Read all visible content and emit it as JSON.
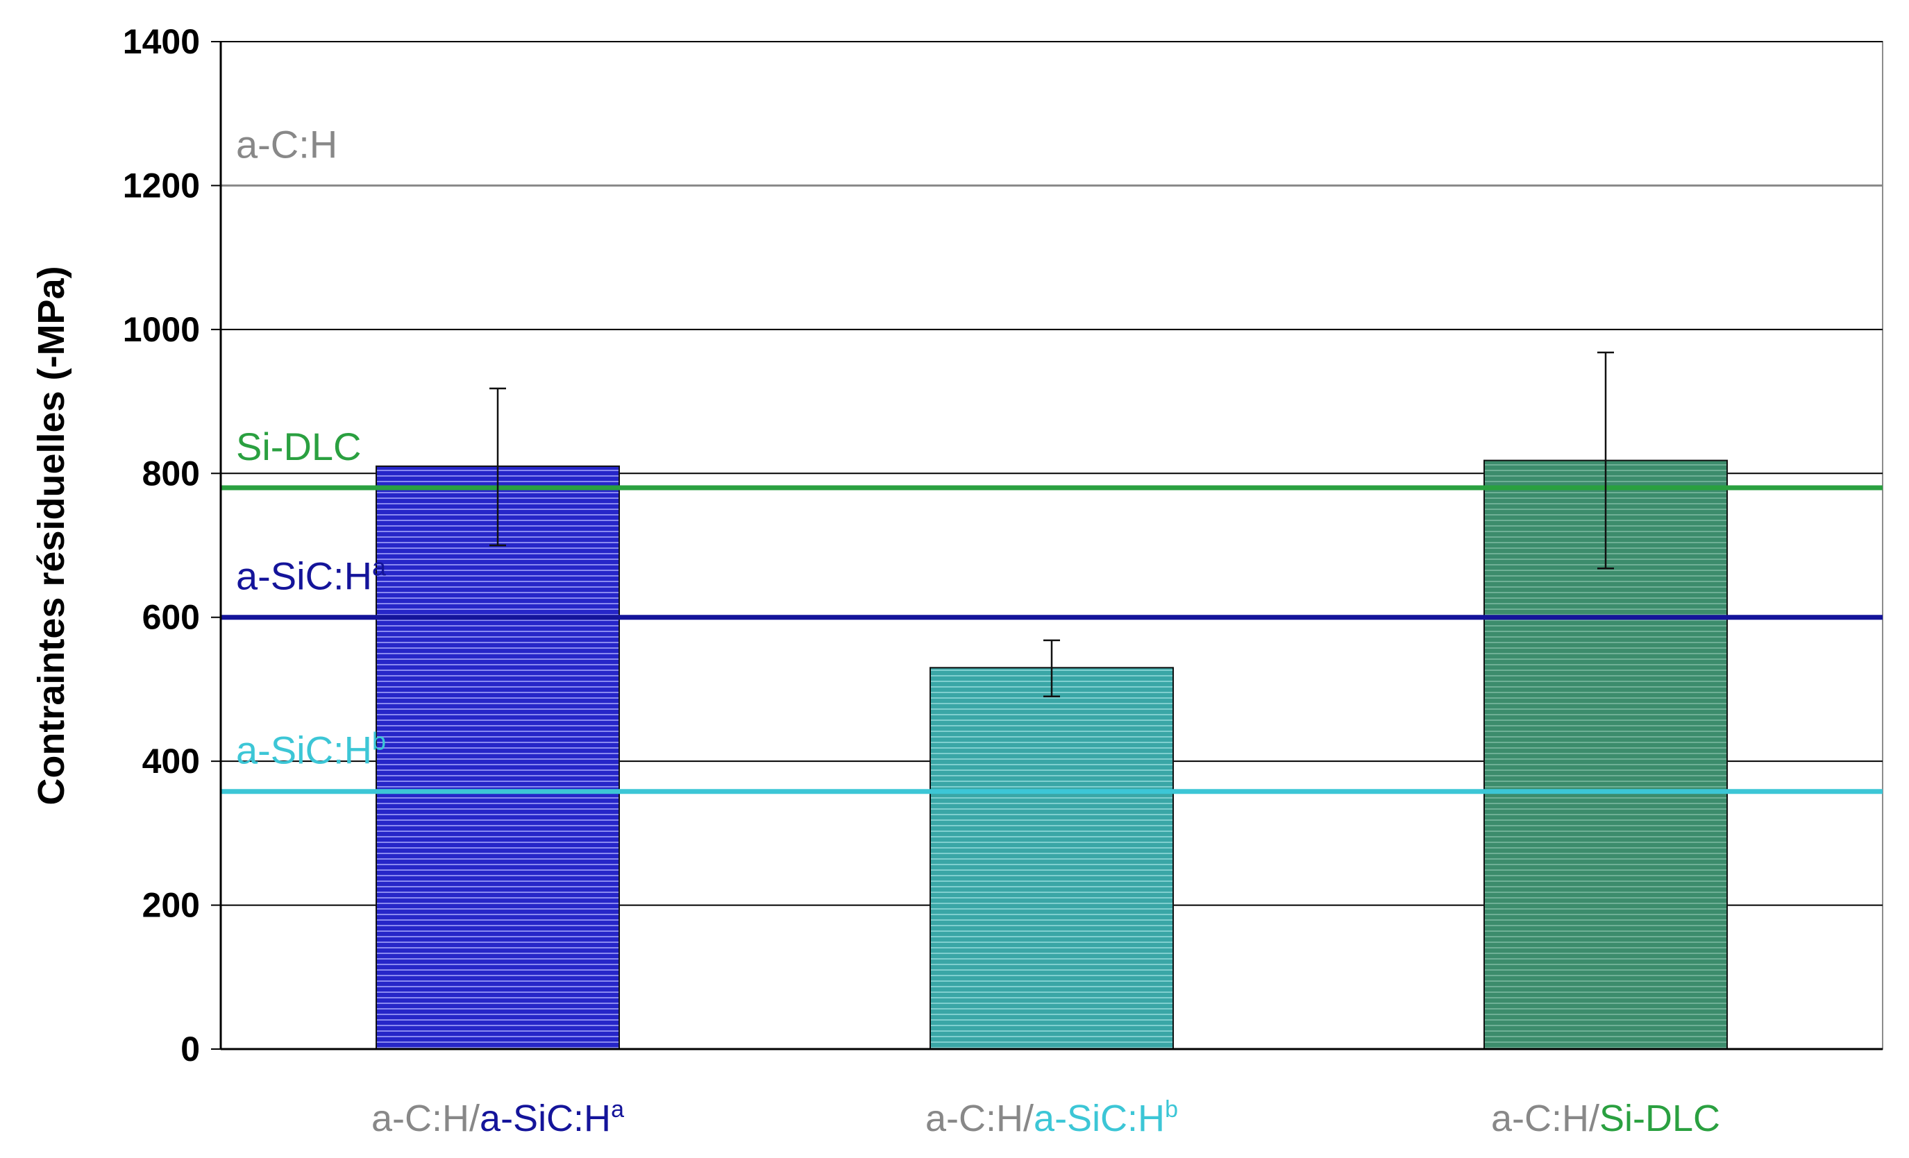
{
  "chart_data": {
    "type": "bar",
    "ylabel": "Contraintes résiduelles (-MPa)",
    "ylim": [
      0,
      1400
    ],
    "yticks": [
      0,
      200,
      400,
      600,
      800,
      1000,
      1200,
      1400
    ],
    "grid": true,
    "bars": [
      {
        "prefix": "a-C:H/",
        "name": "a-SiC:H",
        "sup": "a",
        "value": 810,
        "error_low": 700,
        "error_high": 918,
        "fill": "#2626c8",
        "label_color": "#14149a"
      },
      {
        "prefix": "a-C:H/",
        "name": "a-SiC:H",
        "sup": "b",
        "value": 530,
        "error_low": 490,
        "error_high": 568,
        "fill": "#3aa6a6",
        "label_color": "#3cc6d6"
      },
      {
        "prefix": "a-C:H/",
        "name": "Si-DLC",
        "sup": "",
        "value": 818,
        "error_low": 668,
        "error_high": 968,
        "fill": "#3c8c6c",
        "label_color": "#2aa040"
      }
    ],
    "reference_lines": [
      {
        "name": "a-C:H",
        "sup": "",
        "value": 1200,
        "color": "#888888"
      },
      {
        "name": "Si-DLC",
        "sup": "",
        "value": 780,
        "color": "#2aa040"
      },
      {
        "name": "a-SiC:H",
        "sup": "a",
        "value": 600,
        "color": "#14149a"
      },
      {
        "name": "a-SiC:H",
        "sup": "b",
        "value": 358,
        "color": "#3cc6d6"
      }
    ],
    "prefix_color": "#888888"
  }
}
